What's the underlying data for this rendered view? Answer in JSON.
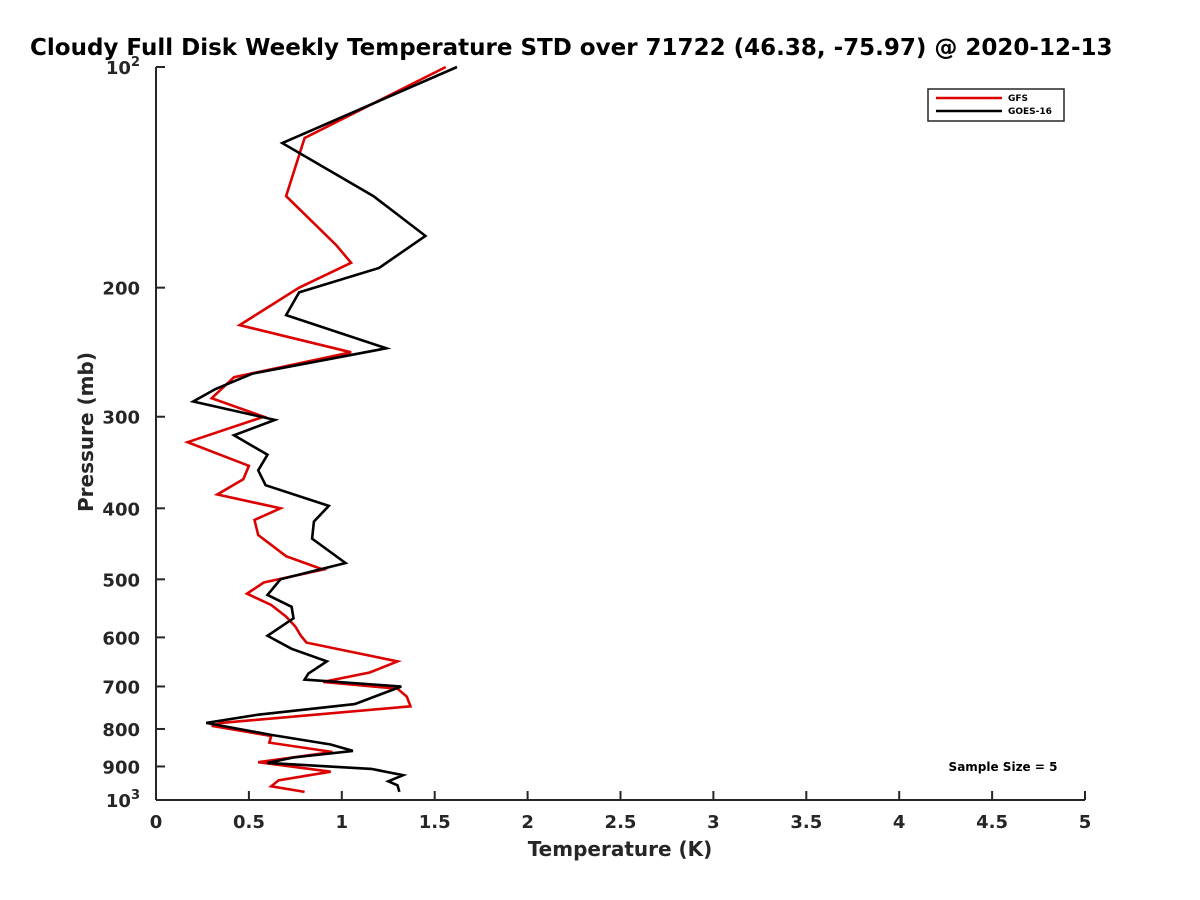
{
  "chart_data": {
    "type": "line",
    "title": "Cloudy Full Disk Weekly Temperature STD over 71722 (46.38, -75.97) @ 2020-12-13",
    "xlabel": "Temperature (K)",
    "ylabel": "Pressure (mb)",
    "xlim": [
      0,
      5
    ],
    "ylim": [
      100,
      1000
    ],
    "yscale": "log",
    "yreversed": true,
    "grid": false,
    "legend_position": "top-right",
    "x_ticks": [
      0,
      0.5,
      1,
      1.5,
      2,
      2.5,
      3,
      3.5,
      4,
      4.5,
      5
    ],
    "x_tick_labels": [
      "0",
      "0.5",
      "1",
      "1.5",
      "2",
      "2.5",
      "3",
      "3.5",
      "4",
      "4.5",
      "5"
    ],
    "y_ticks": [
      {
        "value": 100,
        "label": "10",
        "sup": "2"
      },
      {
        "value": 200,
        "label": "200",
        "sup": ""
      },
      {
        "value": 300,
        "label": "300",
        "sup": ""
      },
      {
        "value": 400,
        "label": "400",
        "sup": ""
      },
      {
        "value": 500,
        "label": "500",
        "sup": ""
      },
      {
        "value": 600,
        "label": "600",
        "sup": ""
      },
      {
        "value": 700,
        "label": "700",
        "sup": ""
      },
      {
        "value": 800,
        "label": "800",
        "sup": ""
      },
      {
        "value": 900,
        "label": "900",
        "sup": ""
      },
      {
        "value": 1000,
        "label": "10",
        "sup": "3"
      }
    ],
    "annotation": "Sample Size = 5",
    "series": [
      {
        "name": "GFS",
        "color": "#dd0000",
        "points": [
          [
            1.56,
            100
          ],
          [
            0.8,
            125
          ],
          [
            0.7,
            150
          ],
          [
            0.97,
            175
          ],
          [
            1.05,
            185
          ],
          [
            0.77,
            200
          ],
          [
            0.45,
            225
          ],
          [
            1.05,
            245
          ],
          [
            0.42,
            265
          ],
          [
            0.3,
            283
          ],
          [
            0.58,
            300
          ],
          [
            0.17,
            325
          ],
          [
            0.5,
            350
          ],
          [
            0.47,
            365
          ],
          [
            0.33,
            383
          ],
          [
            0.67,
            400
          ],
          [
            0.53,
            415
          ],
          [
            0.55,
            435
          ],
          [
            0.7,
            465
          ],
          [
            0.9,
            485
          ],
          [
            0.58,
            505
          ],
          [
            0.49,
            523
          ],
          [
            0.62,
            542
          ],
          [
            0.7,
            562
          ],
          [
            0.75,
            580
          ],
          [
            0.78,
            597
          ],
          [
            0.81,
            610
          ],
          [
            1.3,
            647
          ],
          [
            1.15,
            670
          ],
          [
            0.9,
            690
          ],
          [
            1.3,
            705
          ],
          [
            1.35,
            723
          ],
          [
            1.37,
            745
          ],
          [
            0.35,
            785
          ],
          [
            0.3,
            792
          ],
          [
            0.62,
            818
          ],
          [
            0.61,
            835
          ],
          [
            0.95,
            860
          ],
          [
            0.55,
            888
          ],
          [
            0.94,
            915
          ],
          [
            0.66,
            940
          ],
          [
            0.62,
            958
          ],
          [
            0.8,
            975
          ]
        ]
      },
      {
        "name": "GOES-16",
        "color": "#000000",
        "points": [
          [
            1.62,
            100
          ],
          [
            0.68,
            127
          ],
          [
            1.17,
            150
          ],
          [
            1.45,
            170
          ],
          [
            1.2,
            188
          ],
          [
            0.77,
            203
          ],
          [
            0.7,
            218
          ],
          [
            1.24,
            242
          ],
          [
            0.52,
            262
          ],
          [
            0.32,
            275
          ],
          [
            0.2,
            286
          ],
          [
            0.64,
            303
          ],
          [
            0.42,
            318
          ],
          [
            0.6,
            338
          ],
          [
            0.55,
            355
          ],
          [
            0.59,
            372
          ],
          [
            0.93,
            397
          ],
          [
            0.85,
            417
          ],
          [
            0.84,
            440
          ],
          [
            1.02,
            475
          ],
          [
            0.67,
            500
          ],
          [
            0.6,
            525
          ],
          [
            0.73,
            545
          ],
          [
            0.74,
            565
          ],
          [
            0.6,
            597
          ],
          [
            0.73,
            622
          ],
          [
            0.92,
            647
          ],
          [
            0.82,
            672
          ],
          [
            0.8,
            685
          ],
          [
            1.32,
            700
          ],
          [
            1.07,
            740
          ],
          [
            0.55,
            765
          ],
          [
            0.27,
            785
          ],
          [
            0.62,
            815
          ],
          [
            0.94,
            840
          ],
          [
            1.06,
            857
          ],
          [
            0.74,
            875
          ],
          [
            0.6,
            890
          ],
          [
            1.16,
            907
          ],
          [
            1.33,
            925
          ],
          [
            1.25,
            943
          ],
          [
            1.3,
            955
          ],
          [
            1.31,
            975
          ]
        ]
      }
    ]
  }
}
